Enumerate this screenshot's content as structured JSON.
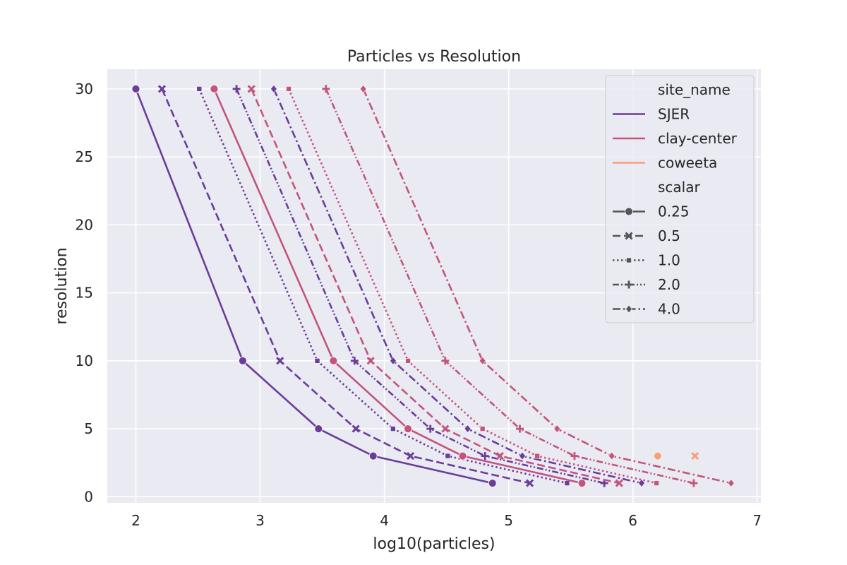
{
  "chart_data": {
    "type": "line",
    "title": "Particles vs Resolution",
    "xlabel": "log10(particles)",
    "ylabel": "resolution",
    "xlim": [
      1.77,
      7.03
    ],
    "ylim": [
      -0.45,
      31.45
    ],
    "xticks": [
      2,
      3,
      4,
      5,
      6,
      7
    ],
    "yticks": [
      0,
      5,
      10,
      15,
      20,
      25,
      30
    ],
    "grid": true,
    "legend": {
      "placement": "top-right",
      "hue_title": "site_name",
      "style_title": "scalar",
      "hue_entries": [
        {
          "name": "SJER",
          "color": "#6a3d9a"
        },
        {
          "name": "clay-center",
          "color": "#c2547f"
        },
        {
          "name": "coweeta",
          "color": "#f79f7b"
        }
      ],
      "style_entries": [
        {
          "name": "0.25",
          "marker": "circle",
          "dash": "solid"
        },
        {
          "name": "0.5",
          "marker": "x",
          "dash": "dashed"
        },
        {
          "name": "1.0",
          "marker": "square",
          "dash": "dotted"
        },
        {
          "name": "2.0",
          "marker": "plus",
          "dash": "dashdotdot"
        },
        {
          "name": "4.0",
          "marker": "diamond",
          "dash": "dashdot"
        }
      ]
    },
    "series": [
      {
        "site": "SJER",
        "scalar": "0.25",
        "points": [
          [
            2.0,
            30
          ],
          [
            2.86,
            10
          ],
          [
            3.47,
            5
          ],
          [
            3.91,
            3
          ],
          [
            4.87,
            1
          ]
        ]
      },
      {
        "site": "SJER",
        "scalar": "0.5",
        "points": [
          [
            2.21,
            30
          ],
          [
            3.16,
            10
          ],
          [
            3.77,
            5
          ],
          [
            4.21,
            3
          ],
          [
            5.17,
            1
          ]
        ]
      },
      {
        "site": "SJER",
        "scalar": "1.0",
        "points": [
          [
            2.51,
            30
          ],
          [
            3.46,
            10
          ],
          [
            4.07,
            5
          ],
          [
            4.51,
            3
          ],
          [
            5.47,
            1
          ]
        ]
      },
      {
        "site": "SJER",
        "scalar": "2.0",
        "points": [
          [
            2.81,
            30
          ],
          [
            3.76,
            10
          ],
          [
            4.37,
            5
          ],
          [
            4.81,
            3
          ],
          [
            5.77,
            1
          ]
        ]
      },
      {
        "site": "SJER",
        "scalar": "4.0",
        "points": [
          [
            3.11,
            30
          ],
          [
            4.07,
            10
          ],
          [
            4.67,
            5
          ],
          [
            5.11,
            3
          ],
          [
            6.07,
            1
          ]
        ]
      },
      {
        "site": "clay-center",
        "scalar": "0.25",
        "points": [
          [
            2.63,
            30
          ],
          [
            3.59,
            10
          ],
          [
            4.19,
            5
          ],
          [
            4.63,
            3
          ],
          [
            5.59,
            1
          ]
        ]
      },
      {
        "site": "clay-center",
        "scalar": "0.5",
        "points": [
          [
            2.93,
            30
          ],
          [
            3.89,
            10
          ],
          [
            4.49,
            5
          ],
          [
            4.93,
            3
          ],
          [
            5.89,
            1
          ]
        ]
      },
      {
        "site": "clay-center",
        "scalar": "1.0",
        "points": [
          [
            3.23,
            30
          ],
          [
            4.19,
            10
          ],
          [
            4.79,
            5
          ],
          [
            5.23,
            3
          ],
          [
            6.19,
            1
          ]
        ]
      },
      {
        "site": "clay-center",
        "scalar": "2.0",
        "points": [
          [
            3.53,
            30
          ],
          [
            4.49,
            10
          ],
          [
            5.09,
            5
          ],
          [
            5.53,
            3
          ],
          [
            6.49,
            1
          ]
        ]
      },
      {
        "site": "clay-center",
        "scalar": "4.0",
        "points": [
          [
            3.83,
            30
          ],
          [
            4.79,
            10
          ],
          [
            5.39,
            5
          ],
          [
            5.83,
            3
          ],
          [
            6.79,
            1
          ]
        ]
      },
      {
        "site": "coweeta",
        "scalar": "0.25",
        "points": [
          [
            6.2,
            3
          ]
        ]
      },
      {
        "site": "coweeta",
        "scalar": "0.5",
        "points": [
          [
            6.5,
            3
          ]
        ]
      }
    ]
  }
}
